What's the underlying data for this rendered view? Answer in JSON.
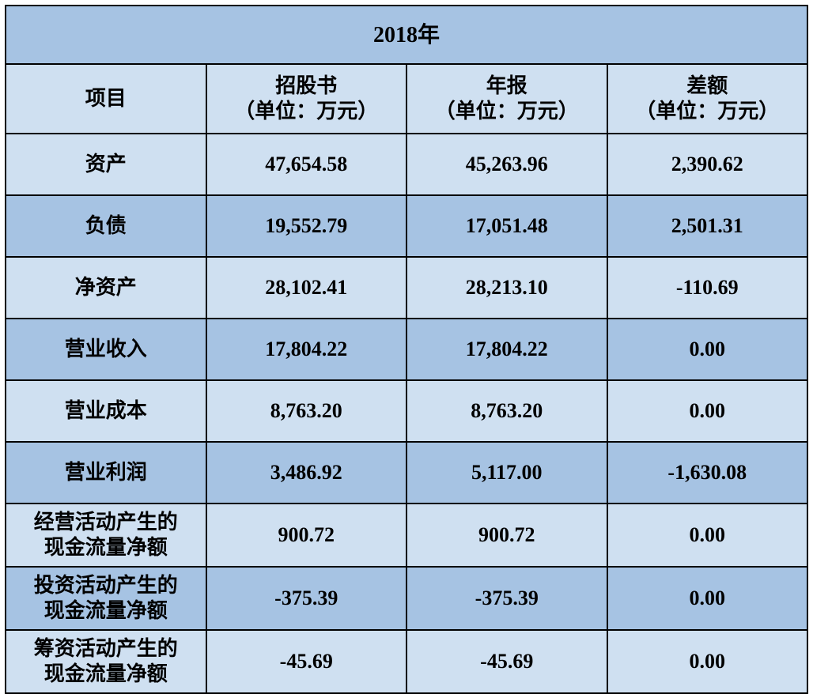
{
  "table": {
    "type": "table",
    "background_colors": {
      "light": "#cfe0f1",
      "dark": "#a6c3e3"
    },
    "border_color": "#000000",
    "text_color": "#000000",
    "font_family": "SimSun",
    "title": "2018年",
    "title_fontsize": 28,
    "header_fontsize": 26,
    "cell_fontsize": 26,
    "columns": [
      {
        "label": "项目",
        "sublabel": ""
      },
      {
        "label": "招股书",
        "sublabel": "（单位：万元）"
      },
      {
        "label": "年报",
        "sublabel": "（单位：万元）"
      },
      {
        "label": "差额",
        "sublabel": "（单位：万元）"
      }
    ],
    "rows": [
      {
        "item": "资产",
        "a": "47,654.58",
        "b": "45,263.96",
        "c": "2,390.62",
        "shade": "light"
      },
      {
        "item": "负债",
        "a": "19,552.79",
        "b": "17,051.48",
        "c": "2,501.31",
        "shade": "dark"
      },
      {
        "item": "净资产",
        "a": "28,102.41",
        "b": "28,213.10",
        "c": "-110.69",
        "shade": "light"
      },
      {
        "item": "营业收入",
        "a": "17,804.22",
        "b": "17,804.22",
        "c": "0.00",
        "shade": "dark"
      },
      {
        "item": "营业成本",
        "a": "8,763.20",
        "b": "8,763.20",
        "c": "0.00",
        "shade": "light"
      },
      {
        "item": "营业利润",
        "a": "3,486.92",
        "b": "5,117.00",
        "c": "-1,630.08",
        "shade": "dark"
      },
      {
        "item": "经营活动产生的\n现金流量净额",
        "a": "900.72",
        "b": "900.72",
        "c": "0.00",
        "shade": "light",
        "tall": true
      },
      {
        "item": "投资活动产生的\n现金流量净额",
        "a": "-375.39",
        "b": "-375.39",
        "c": "0.00",
        "shade": "dark",
        "tall": true
      },
      {
        "item": "筹资活动产生的\n现金流量净额",
        "a": "-45.69",
        "b": "-45.69",
        "c": "0.00",
        "shade": "light",
        "tall": true
      }
    ]
  }
}
